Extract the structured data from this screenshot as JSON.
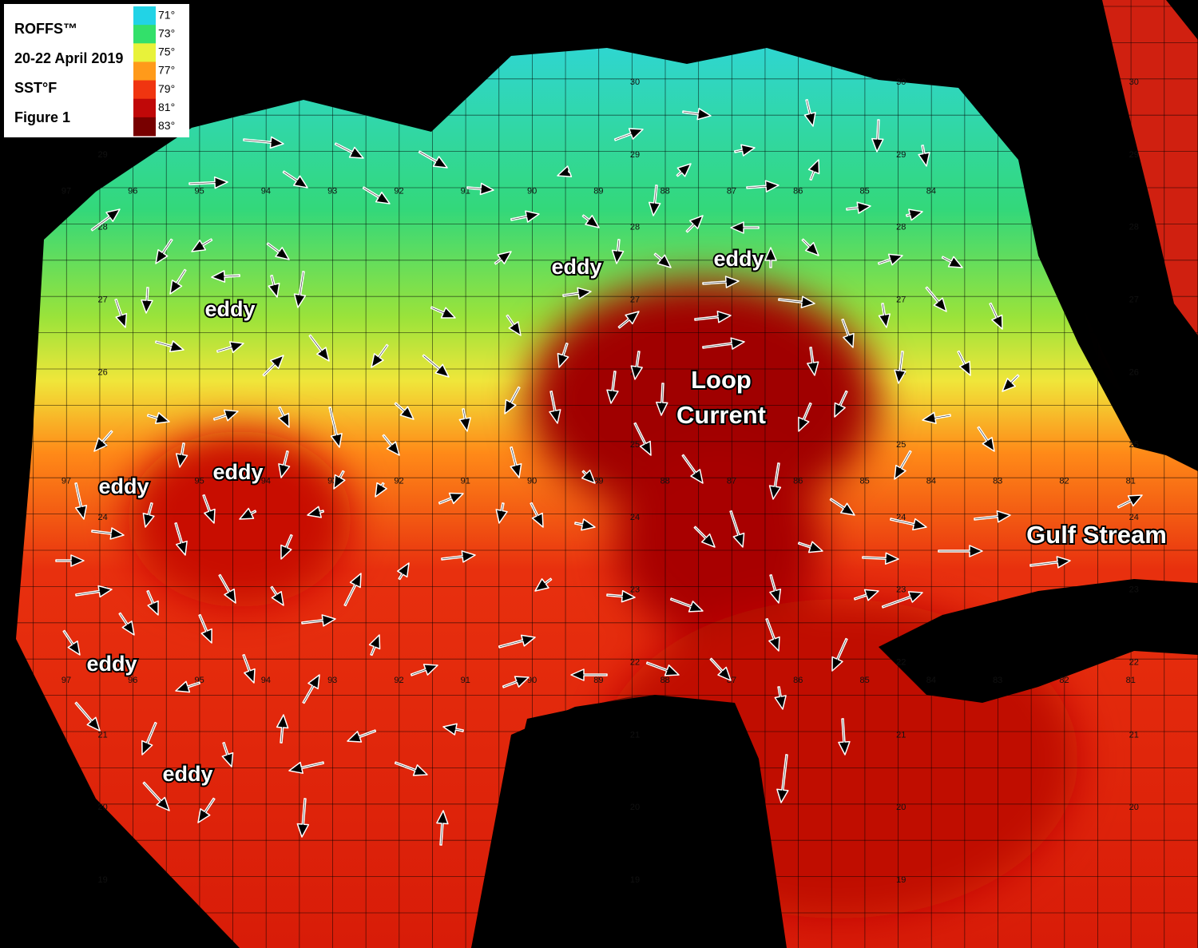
{
  "legend": {
    "title_lines": [
      "ROFFS™",
      "20-22 April 2019",
      "SST°F",
      "Figure 1"
    ],
    "scale": [
      {
        "label": "71°",
        "color": "#22d3e6"
      },
      {
        "label": "73°",
        "color": "#33e06a"
      },
      {
        "label": "75°",
        "color": "#e8f23a"
      },
      {
        "label": "77°",
        "color": "#ff9a1a"
      },
      {
        "label": "79°",
        "color": "#f03510"
      },
      {
        "label": "81°",
        "color": "#c00808"
      },
      {
        "label": "83°",
        "color": "#780000"
      }
    ]
  },
  "labels": {
    "eddies": [
      "eddy",
      "eddy",
      "eddy",
      "eddy",
      "eddy",
      "eddy",
      "eddy"
    ],
    "loop_current": [
      "Loop",
      "Current"
    ],
    "gulf_stream": "Gulf Stream"
  },
  "grid": {
    "longitudes": [
      97,
      96,
      95,
      94,
      93,
      92,
      91,
      90,
      89,
      88,
      87,
      86,
      85,
      84,
      83,
      82,
      81
    ],
    "latitudes": [
      30,
      29,
      28,
      27,
      26,
      25,
      24,
      23,
      22,
      21,
      20,
      19
    ]
  }
}
